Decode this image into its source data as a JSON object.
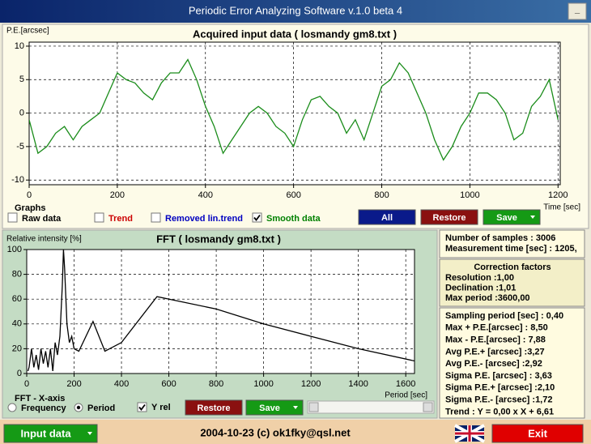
{
  "window": {
    "title": "Periodic Error Analyzing Software v.1.0 beta 4",
    "minimize": "_"
  },
  "chart_data": [
    {
      "type": "line",
      "title": "Acquired input data ( losmandy gm8.txt )",
      "y_label": "P.E.[arcsec]",
      "x_label": "Time [sec]",
      "x": [
        0,
        20,
        40,
        60,
        80,
        100,
        120,
        140,
        160,
        180,
        200,
        220,
        240,
        260,
        280,
        300,
        320,
        340,
        360,
        380,
        400,
        420,
        440,
        460,
        480,
        500,
        520,
        540,
        560,
        580,
        600,
        620,
        640,
        660,
        680,
        700,
        720,
        740,
        760,
        780,
        800,
        820,
        840,
        860,
        880,
        900,
        920,
        940,
        960,
        980,
        1000,
        1020,
        1040,
        1060,
        1080,
        1100,
        1120,
        1140,
        1160,
        1180,
        1200
      ],
      "values": [
        -1,
        -6,
        -5,
        -3,
        -2,
        -4,
        -2,
        -1,
        0,
        3,
        6,
        5,
        4.5,
        3,
        2,
        4.5,
        6,
        6,
        8,
        5,
        1,
        -2,
        -6,
        -4,
        -2,
        0,
        1,
        0,
        -2,
        -3,
        -5,
        -1,
        2,
        2.5,
        1,
        0,
        -3,
        -1,
        -4,
        0,
        4,
        5,
        7.5,
        6,
        3,
        0,
        -4,
        -7,
        -5,
        -2,
        0,
        3,
        3,
        2,
        0,
        -4,
        -3,
        1,
        2.5,
        5,
        -1
      ],
      "color": "#1a8c1a",
      "xlim": [
        0,
        1205
      ],
      "ylim": [
        -10.7,
        10.6
      ],
      "xticks": [
        0,
        200,
        400,
        600,
        800,
        1000,
        1200
      ],
      "yticks": [
        -10,
        -5,
        0,
        5,
        10
      ],
      "grid": true
    },
    {
      "type": "line",
      "title": "FFT ( losmandy gm8.txt )",
      "y_label": "Relative intensity [%]",
      "x_label": "Period [sec]",
      "x": [
        5,
        10,
        20,
        30,
        40,
        50,
        60,
        70,
        80,
        90,
        100,
        110,
        120,
        130,
        140,
        150,
        155,
        160,
        170,
        180,
        190,
        200,
        220,
        280,
        330,
        400,
        550,
        800,
        1000,
        1200,
        1400,
        1640
      ],
      "values": [
        2,
        5,
        20,
        5,
        15,
        3,
        20,
        8,
        18,
        5,
        20,
        2,
        25,
        15,
        30,
        70,
        100,
        85,
        40,
        25,
        30,
        20,
        18,
        42,
        18,
        25,
        62,
        52,
        40,
        30,
        20,
        10
      ],
      "color": "#000000",
      "xlim": [
        0,
        1637
      ],
      "ylim": [
        0,
        100
      ],
      "xticks": [
        0,
        200,
        400,
        600,
        800,
        1000,
        1200,
        1400,
        1600
      ],
      "yticks": [
        0,
        20,
        40,
        60,
        80,
        100
      ],
      "grid": true
    }
  ],
  "graphs": {
    "title": "Graphs",
    "options": [
      {
        "label": "Raw data",
        "checked": false,
        "color": "#000000"
      },
      {
        "label": "Trend",
        "checked": false,
        "color": "#cc0000"
      },
      {
        "label": "Removed lin.trend",
        "checked": false,
        "color": "#0000c0"
      },
      {
        "label": "Smooth data",
        "checked": true,
        "color": "#008000"
      }
    ],
    "buttons": [
      "All",
      "Restore",
      "Save"
    ]
  },
  "fft_controls": {
    "title": "FFT - X-axis",
    "options": [
      {
        "label": "Frequency",
        "selected": false
      },
      {
        "label": "Period",
        "selected": true
      }
    ],
    "y_rel": {
      "label": "Y rel",
      "checked": true
    },
    "buttons": [
      "Restore",
      "Save"
    ]
  },
  "info": {
    "samples": [
      "Number of samples : 3006",
      "Measurement time [sec] : 1205,"
    ],
    "correction_title": "Correction factors",
    "correction": [
      "Resolution :1,00",
      "Declination :1,01",
      "Max period :3600,00"
    ],
    "stats": [
      "Sampling period [sec] : 0,40",
      "Max + P.E.[arcsec] : 8,50",
      "Max - P.E.[arcsec] : 7,88",
      "Avg P.E.+ [arcsec] :3,27",
      "Avg P.E.- [arcsec] :2,92",
      "Sigma P.E. [arcsec] : 3,63",
      "Sigma P.E.+ [arcsec] :2,10",
      "Sigma P.E.- [arcsec] :1,72",
      "Trend : Y = 0,00 x X + 6,61"
    ]
  },
  "footer": {
    "input_button": "Input data",
    "copyright": "2004-10-23 (c) ok1fky@qsl.net",
    "exit_button": "Exit"
  }
}
